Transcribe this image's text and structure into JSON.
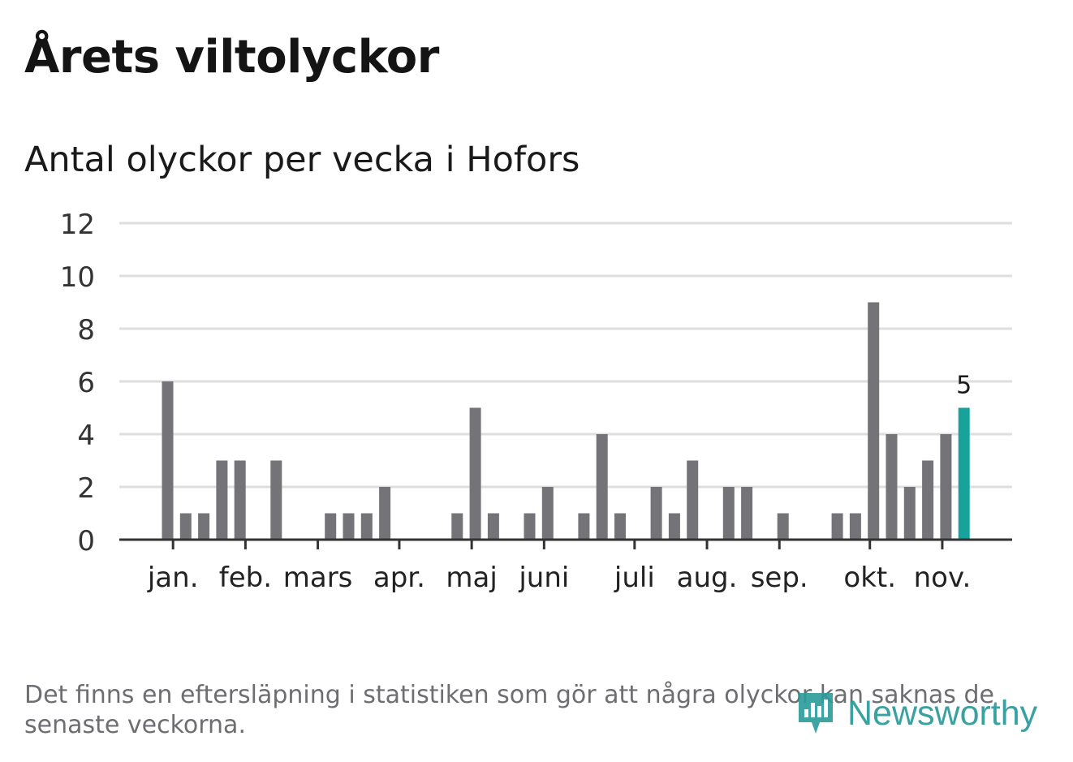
{
  "header": {
    "title": "Årets viltolyckor",
    "subtitle": "Antal olyckor per vecka i Hofors"
  },
  "footnote": "Det finns en eftersläpning i statistiken som gör att några olyckor kan saknas de senaste veckorna.",
  "brand": {
    "name": "Newsworthy",
    "icon": "newsworthy-logo-icon",
    "color": "#2a9a9a"
  },
  "colors": {
    "bar": "#737378",
    "highlight": "#17a39b",
    "grid": "#dedede",
    "axis": "#333333"
  },
  "chart_data": {
    "type": "bar",
    "x": [
      1,
      2,
      3,
      4,
      5,
      6,
      7,
      8,
      9,
      10,
      11,
      12,
      13,
      14,
      15,
      16,
      17,
      18,
      19,
      20,
      21,
      22,
      23,
      24,
      25,
      26,
      27,
      28,
      29,
      30,
      31,
      32,
      33,
      34,
      35,
      36,
      37,
      38,
      39,
      40,
      41,
      42,
      43,
      44,
      45
    ],
    "values": [
      6,
      1,
      1,
      3,
      3,
      0,
      3,
      0,
      0,
      1,
      1,
      1,
      2,
      0,
      0,
      0,
      1,
      5,
      1,
      0,
      1,
      2,
      0,
      1,
      4,
      1,
      0,
      2,
      1,
      3,
      0,
      2,
      2,
      0,
      1,
      0,
      0,
      1,
      1,
      9,
      4,
      2,
      3,
      4,
      5
    ],
    "highlight_index": 44,
    "highlight_label": "5",
    "ylim": [
      0,
      12
    ],
    "yticks": [
      "0",
      "2",
      "4",
      "6",
      "8",
      "10",
      "12"
    ],
    "month_labels": [
      "jan.",
      "feb.",
      "mars",
      "apr.",
      "maj",
      "juni",
      "juli",
      "aug.",
      "sep.",
      "okt.",
      "nov."
    ],
    "month_positions": [
      1.3,
      5.3,
      9.3,
      13.8,
      17.8,
      21.8,
      26.8,
      30.8,
      34.8,
      39.8,
      43.8
    ],
    "grid": true,
    "legend": "none"
  }
}
